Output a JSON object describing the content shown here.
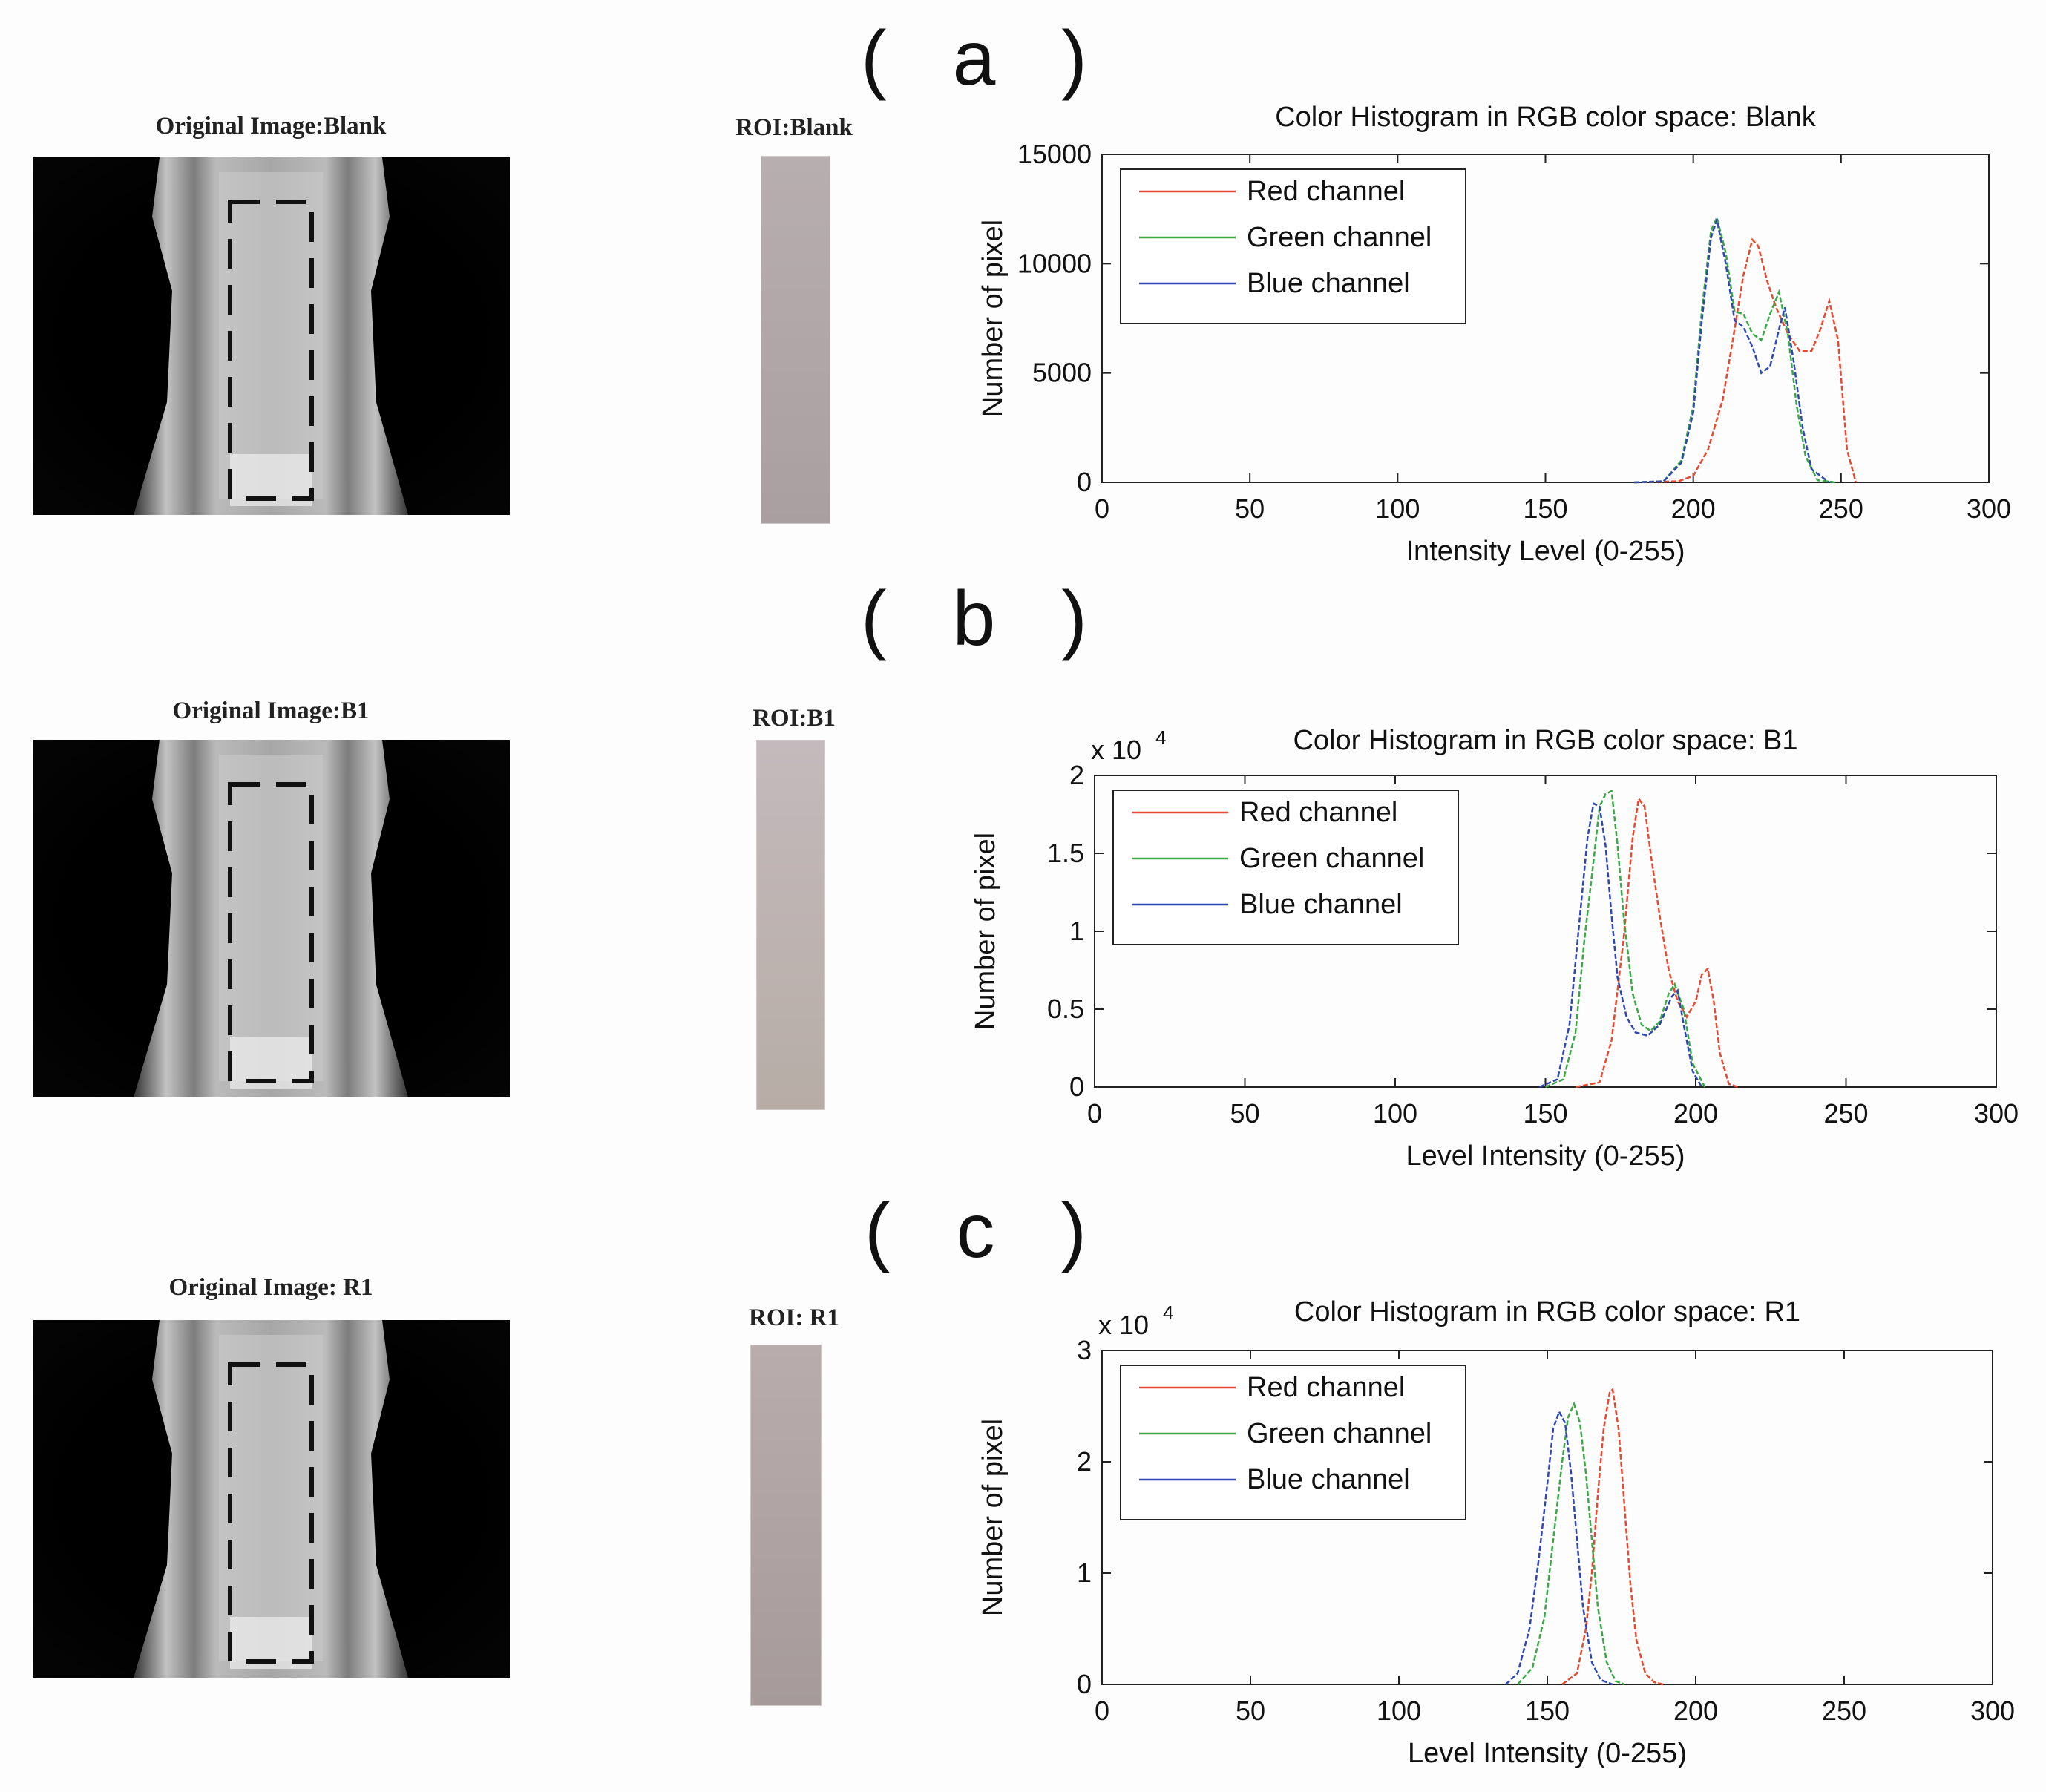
{
  "panels": [
    {
      "label": "( a )",
      "photo_title": "Original Image:Blank",
      "roi_title": "ROI:Blank",
      "roi_color_top": "#b7aeb0",
      "roi_color_bottom": "#aa9fa0"
    },
    {
      "label": "( b )",
      "photo_title": "Original Image:B1",
      "roi_title": "ROI:B1",
      "roi_color_top": "#c4b9bc",
      "roi_color_bottom": "#b7ada6"
    },
    {
      "label": "( c )",
      "photo_title": "Original Image: R1",
      "roi_title": "ROI: R1",
      "roi_color_top": "#b8acac",
      "roi_color_bottom": "#a69b9a"
    }
  ],
  "chart_data": [
    {
      "type": "line",
      "title": "Color Histogram in RGB color space: Blank",
      "xlabel": "Intensity Level (0-255)",
      "ylabel": "Number of pixel",
      "exponent_label": "",
      "xlim": [
        0,
        300
      ],
      "ylim": [
        0,
        15000
      ],
      "xticks": [
        0,
        50,
        100,
        150,
        200,
        250,
        300
      ],
      "yticks": [
        0,
        5000,
        10000,
        15000
      ],
      "ytick_labels": [
        "0",
        "5000",
        "10000",
        "15000"
      ],
      "legend_position": "top-left",
      "series": [
        {
          "name": "Red channel",
          "color": "#e8482e",
          "x": [
            180,
            195,
            200,
            205,
            210,
            214,
            217,
            220,
            222,
            225,
            228,
            232,
            236,
            240,
            243,
            246,
            249,
            252,
            255
          ],
          "y": [
            0,
            50,
            300,
            1500,
            3800,
            7000,
            9500,
            11100,
            10800,
            9200,
            8000,
            6800,
            6000,
            6000,
            7000,
            8300,
            6500,
            1500,
            0
          ]
        },
        {
          "name": "Green channel",
          "color": "#3aa845",
          "x": [
            180,
            190,
            196,
            200,
            203,
            206,
            208,
            211,
            214,
            217,
            220,
            223,
            226,
            229,
            232,
            235,
            238,
            242,
            248
          ],
          "y": [
            0,
            50,
            1000,
            3500,
            8000,
            11500,
            12100,
            10500,
            7800,
            7700,
            6800,
            6500,
            7700,
            8700,
            6800,
            3500,
            1200,
            100,
            0
          ]
        },
        {
          "name": "Blue channel",
          "color": "#2f46b5",
          "x": [
            180,
            190,
            196,
            200,
            203,
            206,
            208,
            211,
            214,
            217,
            220,
            223,
            226,
            229,
            231,
            234,
            237,
            240,
            246
          ],
          "y": [
            0,
            50,
            900,
            3200,
            7500,
            11200,
            12000,
            10000,
            7400,
            7100,
            6200,
            5000,
            5300,
            7000,
            8000,
            5500,
            2500,
            600,
            0
          ]
        }
      ]
    },
    {
      "type": "line",
      "title": "Color Histogram in RGB color space: B1",
      "xlabel": "Level Intensity (0-255)",
      "ylabel": "Number of pixel",
      "exponent_label": "x 10",
      "exponent_power": "4",
      "xlim": [
        0,
        300
      ],
      "ylim": [
        0,
        2
      ],
      "xticks": [
        0,
        50,
        100,
        150,
        200,
        250,
        300
      ],
      "yticks": [
        0,
        0.5,
        1,
        1.5,
        2
      ],
      "ytick_labels": [
        "0",
        "0.5",
        "1",
        "1.5",
        "2"
      ],
      "legend_position": "top-left",
      "series": [
        {
          "name": "Red channel",
          "color": "#e8482e",
          "x": [
            160,
            168,
            172,
            176,
            179,
            181,
            183,
            185,
            188,
            191,
            194,
            197,
            200,
            202,
            204,
            206,
            208,
            211,
            214
          ],
          "y": [
            0,
            0.03,
            0.3,
            0.95,
            1.6,
            1.85,
            1.8,
            1.5,
            1.1,
            0.75,
            0.55,
            0.45,
            0.55,
            0.72,
            0.76,
            0.55,
            0.22,
            0.02,
            0
          ]
        },
        {
          "name": "Green channel",
          "color": "#3aa845",
          "x": [
            150,
            156,
            160,
            163,
            166,
            168,
            170,
            172,
            174,
            176,
            179,
            182,
            185,
            188,
            191,
            193,
            196,
            199,
            203
          ],
          "y": [
            0,
            0.05,
            0.35,
            0.95,
            1.45,
            1.8,
            1.88,
            1.9,
            1.55,
            1.1,
            0.6,
            0.4,
            0.36,
            0.42,
            0.6,
            0.66,
            0.5,
            0.15,
            0
          ]
        },
        {
          "name": "Blue channel",
          "color": "#2f46b5",
          "x": [
            148,
            154,
            158,
            161,
            164,
            166,
            168,
            170,
            172,
            174,
            177,
            180,
            184,
            188,
            192,
            194,
            196,
            199,
            202
          ],
          "y": [
            0,
            0.05,
            0.4,
            1.0,
            1.6,
            1.82,
            1.8,
            1.55,
            1.1,
            0.7,
            0.45,
            0.35,
            0.33,
            0.4,
            0.58,
            0.62,
            0.4,
            0.1,
            0
          ]
        }
      ]
    },
    {
      "type": "line",
      "title": "Color Histogram in RGB color space: R1",
      "xlabel": "Level Intensity (0-255)",
      "ylabel": "Number of pixel",
      "exponent_label": "x 10",
      "exponent_power": "4",
      "xlim": [
        0,
        300
      ],
      "ylim": [
        0,
        3
      ],
      "xticks": [
        0,
        50,
        100,
        150,
        200,
        250,
        300
      ],
      "yticks": [
        0,
        1,
        2,
        3
      ],
      "ytick_labels": [
        "0",
        "1",
        "2",
        "3"
      ],
      "legend_position": "top-left",
      "series": [
        {
          "name": "Red channel",
          "color": "#e8482e",
          "x": [
            155,
            160,
            163,
            165,
            167,
            169,
            171,
            172,
            174,
            176,
            178,
            180,
            183,
            186,
            189
          ],
          "y": [
            0,
            0.1,
            0.5,
            1.0,
            1.7,
            2.3,
            2.62,
            2.65,
            2.3,
            1.6,
            0.9,
            0.4,
            0.1,
            0.02,
            0
          ]
        },
        {
          "name": "Green channel",
          "color": "#3aa845",
          "x": [
            140,
            145,
            149,
            152,
            155,
            157,
            159,
            161,
            163,
            165,
            167,
            170,
            173,
            176
          ],
          "y": [
            0,
            0.15,
            0.6,
            1.3,
            2.0,
            2.4,
            2.52,
            2.35,
            1.9,
            1.3,
            0.7,
            0.2,
            0.03,
            0
          ]
        },
        {
          "name": "Blue channel",
          "color": "#2f46b5",
          "x": [
            136,
            140,
            144,
            147,
            150,
            152,
            154,
            156,
            158,
            160,
            162,
            165,
            168,
            172
          ],
          "y": [
            0,
            0.1,
            0.5,
            1.1,
            1.8,
            2.3,
            2.45,
            2.35,
            1.9,
            1.3,
            0.7,
            0.2,
            0.04,
            0
          ]
        }
      ]
    }
  ]
}
